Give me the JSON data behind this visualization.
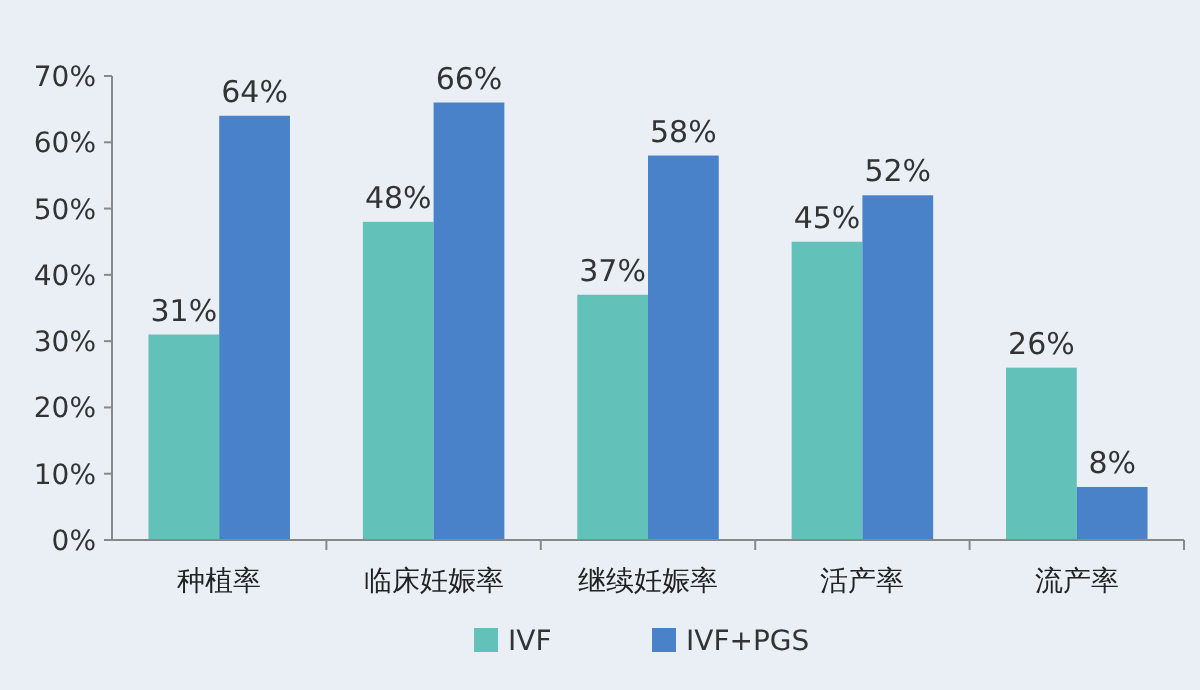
{
  "chart_data": {
    "type": "bar",
    "categories": [
      "种植率",
      "临床妊娠率",
      "继续妊娠率",
      "活产率",
      "流产率"
    ],
    "series": [
      {
        "name": "IVF",
        "color": "#62c2b9",
        "values": [
          31,
          48,
          37,
          45,
          26
        ],
        "value_labels": [
          "31%",
          "48%",
          "37%",
          "45%",
          "26%"
        ]
      },
      {
        "name": "IVF+PGS",
        "color": "#4a82c9",
        "values": [
          64,
          66,
          58,
          52,
          8
        ],
        "value_labels": [
          "64%",
          "66%",
          "58%",
          "52%",
          "8%"
        ]
      }
    ],
    "ylim": [
      0,
      70
    ],
    "yticks": [
      {
        "value": 0,
        "label": "0%"
      },
      {
        "value": 10,
        "label": "10%"
      },
      {
        "value": 20,
        "label": "20%"
      },
      {
        "value": 30,
        "label": "30%"
      },
      {
        "value": 40,
        "label": "40%"
      },
      {
        "value": 50,
        "label": "50%"
      },
      {
        "value": 60,
        "label": "60%"
      },
      {
        "value": 70,
        "label": "70%"
      }
    ],
    "grid": false,
    "legend": "bottom"
  }
}
